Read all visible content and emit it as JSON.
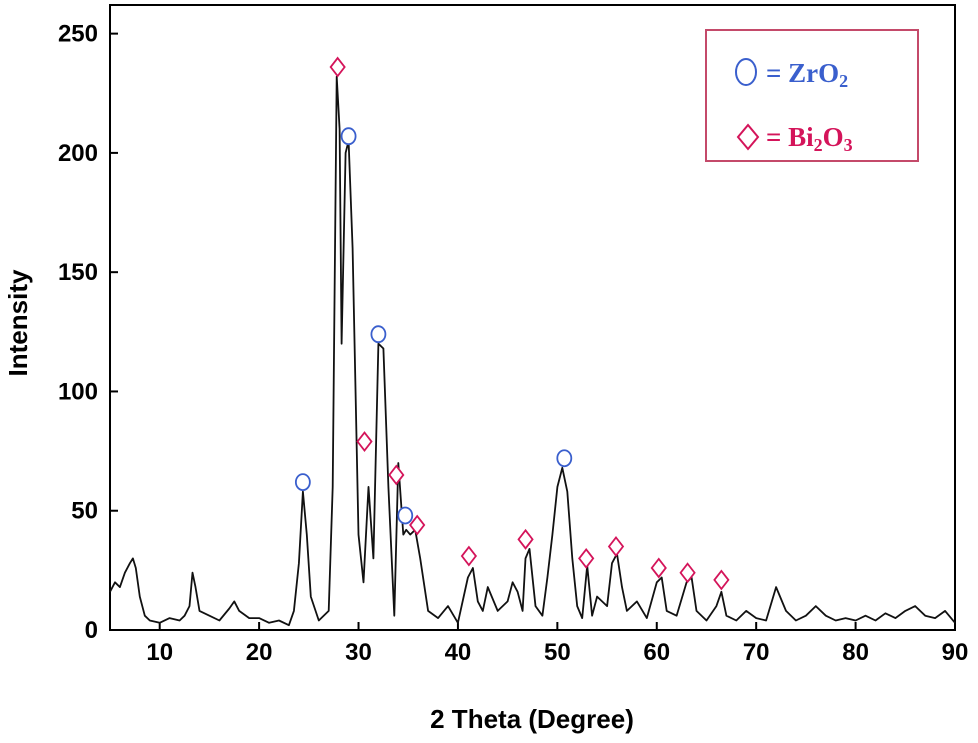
{
  "chart_data": {
    "type": "line",
    "xlabel": "2 Theta (Degree)",
    "ylabel": "Intensity",
    "xlim": [
      5,
      90
    ],
    "ylim": [
      0,
      262
    ],
    "xticks": [
      10,
      20,
      30,
      40,
      50,
      60,
      70,
      80,
      90
    ],
    "yticks": [
      0,
      50,
      100,
      150,
      200,
      250
    ],
    "grid": false,
    "legend_position": "top-right",
    "legend": [
      {
        "symbol": "circle",
        "prefix": "= ZrO",
        "subscript": "2",
        "color": "#3a5fcd"
      },
      {
        "symbol": "diamond",
        "prefix": "= Bi",
        "subscript": "2",
        "suffix": "O",
        "subscript2": "3",
        "color": "#d4145a"
      }
    ],
    "series": [
      {
        "x": [
          5,
          5.5,
          6,
          6.5,
          7,
          7.3,
          7.6,
          8,
          8.5,
          9,
          10,
          11,
          12,
          12.5,
          13,
          13.3,
          13.6,
          14,
          15,
          16,
          17,
          17.5,
          18,
          19,
          20,
          21,
          22,
          23,
          23.5,
          24,
          24.4,
          24.8,
          25.2,
          26,
          27,
          27.4,
          27.8,
          28.1,
          28.3,
          28.7,
          29,
          29.4,
          30,
          30.5,
          31,
          31.5,
          32,
          32.5,
          33,
          33.6,
          34,
          34.5,
          34.8,
          35.2,
          35.7,
          36.2,
          37,
          38,
          39,
          40,
          41,
          41.5,
          42,
          42.5,
          43,
          44,
          45,
          45.5,
          46,
          46.5,
          46.8,
          47.2,
          47.8,
          48.5,
          49,
          49.5,
          50,
          50.5,
          51,
          51.5,
          52,
          52.5,
          53,
          53.5,
          54,
          55,
          55.5,
          56,
          56.5,
          57,
          58,
          59,
          60,
          60.5,
          61,
          62,
          63,
          63.5,
          64,
          65,
          66,
          66.5,
          67,
          68,
          69,
          70,
          71,
          72,
          73,
          74,
          75,
          76,
          77,
          78,
          79,
          80,
          81,
          82,
          83,
          84,
          85,
          86,
          87,
          88,
          89,
          90
        ],
        "y": [
          16,
          20,
          18,
          24,
          28,
          30,
          26,
          14,
          6,
          4,
          3,
          5,
          4,
          6,
          10,
          24,
          18,
          8,
          6,
          4,
          9,
          12,
          8,
          5,
          5,
          3,
          4,
          2,
          8,
          28,
          58,
          40,
          14,
          4,
          8,
          60,
          232,
          210,
          120,
          200,
          205,
          160,
          40,
          20,
          60,
          30,
          120,
          118,
          60,
          6,
          70,
          40,
          42,
          40,
          42,
          30,
          8,
          5,
          10,
          3,
          22,
          26,
          12,
          8,
          18,
          8,
          12,
          20,
          16,
          8,
          30,
          34,
          10,
          6,
          22,
          40,
          60,
          68,
          58,
          30,
          10,
          5,
          27,
          6,
          14,
          10,
          28,
          32,
          18,
          8,
          12,
          5,
          20,
          22,
          8,
          6,
          20,
          22,
          8,
          4,
          10,
          16,
          6,
          4,
          8,
          5,
          4,
          18,
          8,
          4,
          6,
          10,
          6,
          4,
          5,
          4,
          6,
          4,
          7,
          5,
          8,
          10,
          6,
          5,
          8,
          3
        ]
      }
    ],
    "annotations": [
      {
        "symbol": "circle",
        "x": 24.4,
        "y": 62
      },
      {
        "symbol": "diamond",
        "x": 27.9,
        "y": 236
      },
      {
        "symbol": "circle",
        "x": 29.0,
        "y": 207
      },
      {
        "symbol": "circle",
        "x": 32.0,
        "y": 124
      },
      {
        "symbol": "diamond",
        "x": 30.6,
        "y": 79
      },
      {
        "symbol": "diamond",
        "x": 33.8,
        "y": 65
      },
      {
        "symbol": "circle",
        "x": 34.7,
        "y": 48
      },
      {
        "symbol": "diamond",
        "x": 35.9,
        "y": 44
      },
      {
        "symbol": "diamond",
        "x": 41.1,
        "y": 31
      },
      {
        "symbol": "diamond",
        "x": 46.8,
        "y": 38
      },
      {
        "symbol": "circle",
        "x": 50.7,
        "y": 72
      },
      {
        "symbol": "diamond",
        "x": 52.9,
        "y": 30
      },
      {
        "symbol": "diamond",
        "x": 55.9,
        "y": 35
      },
      {
        "symbol": "diamond",
        "x": 60.2,
        "y": 26
      },
      {
        "symbol": "diamond",
        "x": 63.1,
        "y": 24
      },
      {
        "symbol": "diamond",
        "x": 66.5,
        "y": 21
      }
    ]
  }
}
